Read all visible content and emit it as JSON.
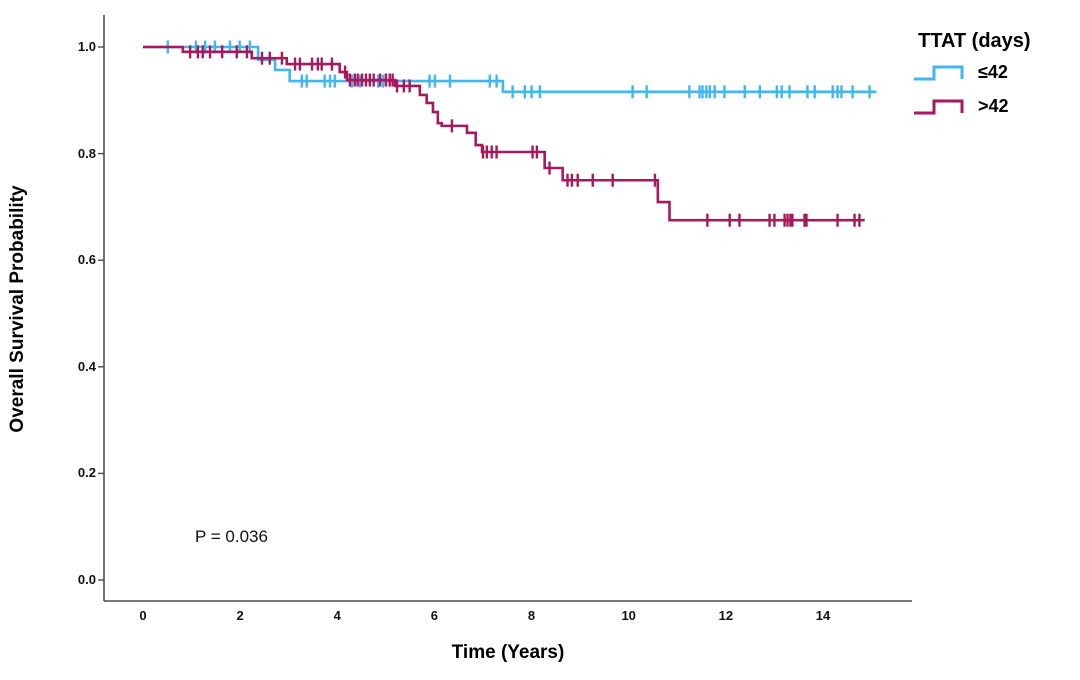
{
  "chart_data": {
    "type": "line",
    "subtype": "kaplan-meier-step",
    "title": "",
    "xlabel": "Time (Years)",
    "ylabel": "Overall Survival Probability",
    "xlim": [
      -0.8,
      15.85
    ],
    "ylim": [
      -0.04,
      1.06
    ],
    "grid": false,
    "legend_position": "top-right",
    "x_ticks": [
      {
        "value": 0,
        "label": "0"
      },
      {
        "value": 2,
        "label": "2"
      },
      {
        "value": 4,
        "label": "4"
      },
      {
        "value": 6,
        "label": "6"
      },
      {
        "value": 8,
        "label": "8"
      },
      {
        "value": 10,
        "label": "10"
      },
      {
        "value": 12,
        "label": "12"
      },
      {
        "value": 14,
        "label": "14"
      }
    ],
    "y_ticks": [
      {
        "value": 0.0,
        "label": "0.0"
      },
      {
        "value": 0.2,
        "label": "0.2"
      },
      {
        "value": 0.4,
        "label": "0.4"
      },
      {
        "value": 0.6,
        "label": "0.6"
      },
      {
        "value": 0.8,
        "label": "0.8"
      },
      {
        "value": 1.0,
        "label": "1.0"
      }
    ],
    "series": [
      {
        "name": "≤42",
        "color": "#41B6F1",
        "end_time": 15.1,
        "steps": [
          [
            0,
            1.0
          ],
          [
            2.37,
            0.976
          ],
          [
            2.72,
            0.957
          ],
          [
            3.02,
            0.936
          ],
          [
            7.41,
            0.916
          ]
        ],
        "censors": [
          [
            0.51,
            1.0
          ],
          [
            1.09,
            1.0
          ],
          [
            1.28,
            1.0
          ],
          [
            1.48,
            1.0
          ],
          [
            1.79,
            1.0
          ],
          [
            1.99,
            1.0
          ],
          [
            2.2,
            1.0
          ],
          [
            3.27,
            0.936
          ],
          [
            3.37,
            0.936
          ],
          [
            3.74,
            0.936
          ],
          [
            3.85,
            0.936
          ],
          [
            3.95,
            0.936
          ],
          [
            4.3,
            0.936
          ],
          [
            4.47,
            0.936
          ],
          [
            4.84,
            0.936
          ],
          [
            4.94,
            0.936
          ],
          [
            5.9,
            0.936
          ],
          [
            6.01,
            0.936
          ],
          [
            6.32,
            0.936
          ],
          [
            7.14,
            0.936
          ],
          [
            7.28,
            0.936
          ],
          [
            7.61,
            0.916
          ],
          [
            7.86,
            0.916
          ],
          [
            8.0,
            0.916
          ],
          [
            8.17,
            0.916
          ],
          [
            10.08,
            0.916
          ],
          [
            10.37,
            0.916
          ],
          [
            11.25,
            0.916
          ],
          [
            11.46,
            0.916
          ],
          [
            11.52,
            0.916
          ],
          [
            11.6,
            0.916
          ],
          [
            11.67,
            0.916
          ],
          [
            11.77,
            0.916
          ],
          [
            11.97,
            0.916
          ],
          [
            12.39,
            0.916
          ],
          [
            12.7,
            0.916
          ],
          [
            13.05,
            0.916
          ],
          [
            13.15,
            0.916
          ],
          [
            13.31,
            0.916
          ],
          [
            13.68,
            0.916
          ],
          [
            13.83,
            0.916
          ],
          [
            14.2,
            0.916
          ],
          [
            14.3,
            0.916
          ],
          [
            14.38,
            0.916
          ],
          [
            14.61,
            0.916
          ],
          [
            14.96,
            0.916
          ]
        ]
      },
      {
        "name": ">42",
        "color": "#A6195C",
        "end_time": 14.86,
        "steps": [
          [
            0,
            1.0
          ],
          [
            0.82,
            0.991
          ],
          [
            2.24,
            0.979
          ],
          [
            2.96,
            0.968
          ],
          [
            4.05,
            0.953
          ],
          [
            4.2,
            0.938
          ],
          [
            5.19,
            0.927
          ],
          [
            5.7,
            0.91
          ],
          [
            5.84,
            0.895
          ],
          [
            5.97,
            0.878
          ],
          [
            6.07,
            0.857
          ],
          [
            6.15,
            0.852
          ],
          [
            6.67,
            0.839
          ],
          [
            6.85,
            0.816
          ],
          [
            6.98,
            0.803
          ],
          [
            8.27,
            0.773
          ],
          [
            8.64,
            0.75
          ],
          [
            10.6,
            0.709
          ],
          [
            10.84,
            0.675
          ]
        ],
        "censors": [
          [
            0.97,
            0.991
          ],
          [
            1.13,
            0.991
          ],
          [
            1.23,
            0.991
          ],
          [
            1.38,
            0.991
          ],
          [
            1.63,
            0.991
          ],
          [
            1.93,
            0.991
          ],
          [
            2.14,
            0.991
          ],
          [
            2.45,
            0.979
          ],
          [
            2.61,
            0.979
          ],
          [
            2.86,
            0.979
          ],
          [
            3.13,
            0.968
          ],
          [
            3.23,
            0.968
          ],
          [
            3.48,
            0.968
          ],
          [
            3.6,
            0.968
          ],
          [
            3.68,
            0.968
          ],
          [
            3.89,
            0.968
          ],
          [
            4.16,
            0.953
          ],
          [
            4.26,
            0.938
          ],
          [
            4.36,
            0.938
          ],
          [
            4.42,
            0.938
          ],
          [
            4.51,
            0.938
          ],
          [
            4.59,
            0.938
          ],
          [
            4.67,
            0.938
          ],
          [
            4.75,
            0.938
          ],
          [
            4.88,
            0.938
          ],
          [
            5.0,
            0.938
          ],
          [
            5.08,
            0.938
          ],
          [
            5.14,
            0.938
          ],
          [
            5.23,
            0.927
          ],
          [
            5.37,
            0.927
          ],
          [
            5.49,
            0.927
          ],
          [
            6.36,
            0.852
          ],
          [
            7.0,
            0.803
          ],
          [
            7.08,
            0.803
          ],
          [
            7.18,
            0.803
          ],
          [
            7.28,
            0.803
          ],
          [
            8.02,
            0.803
          ],
          [
            8.11,
            0.803
          ],
          [
            8.37,
            0.773
          ],
          [
            8.74,
            0.75
          ],
          [
            8.83,
            0.75
          ],
          [
            8.95,
            0.75
          ],
          [
            9.26,
            0.75
          ],
          [
            9.67,
            0.75
          ],
          [
            10.54,
            0.75
          ],
          [
            11.62,
            0.675
          ],
          [
            12.08,
            0.675
          ],
          [
            12.28,
            0.675
          ],
          [
            12.9,
            0.675
          ],
          [
            13.0,
            0.675
          ],
          [
            13.21,
            0.675
          ],
          [
            13.27,
            0.675
          ],
          [
            13.33,
            0.675
          ],
          [
            13.37,
            0.675
          ],
          [
            13.62,
            0.675
          ],
          [
            13.66,
            0.675
          ],
          [
            14.3,
            0.675
          ],
          [
            14.65,
            0.675
          ],
          [
            14.75,
            0.675
          ]
        ]
      }
    ],
    "annotations": [
      {
        "text": "P = 0.036",
        "x": 1.1,
        "y": 0.08
      }
    ]
  },
  "legend": {
    "title": "TTAT (days)",
    "entries": [
      {
        "label": "≤42",
        "color": "#41B6F1"
      },
      {
        "label": ">42",
        "color": "#A6195C"
      }
    ]
  },
  "labels": {
    "x_axis": "Time (Years)",
    "y_axis": "Overall Survival Probability",
    "p_value": "P = 0.036"
  },
  "colors": {
    "group_le42": "#41B6F1",
    "group_gt42": "#A6195C",
    "axis": "#4d4d4d",
    "text": "#000000",
    "background": "#ffffff"
  }
}
